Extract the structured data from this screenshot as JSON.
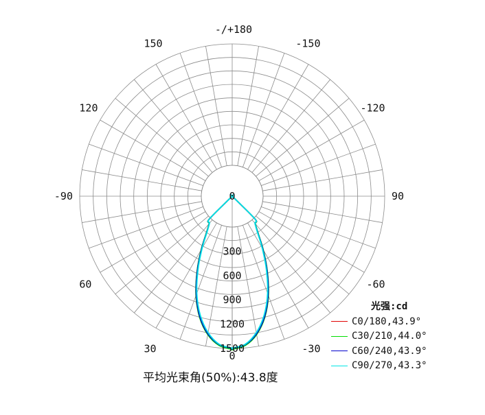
{
  "chart_data": {
    "type": "polar",
    "angle_labels": [
      {
        "angle": 180,
        "text": "-/+180"
      },
      {
        "angle": 150,
        "text": "150"
      },
      {
        "angle": 120,
        "text": "120"
      },
      {
        "angle": 90,
        "text": "90"
      },
      {
        "angle": 60,
        "text": "60"
      },
      {
        "angle": 30,
        "text": "30"
      },
      {
        "angle": 0,
        "text": "0"
      },
      {
        "angle": -30,
        "text": "-30"
      },
      {
        "angle": -60,
        "text": "-60"
      },
      {
        "angle": -90,
        "text": "-90"
      },
      {
        "angle": -120,
        "text": "-120"
      },
      {
        "angle": -150,
        "text": "-150"
      }
    ],
    "radial_ticks": [
      0,
      300,
      600,
      900,
      1200,
      1500
    ],
    "r_max": 1500,
    "grid": true,
    "legend_title": "光强:cd",
    "legend_position": "bottom-right",
    "series": [
      {
        "name": "C0/180,43.9°",
        "color": "#e00000",
        "points": [
          [
            0,
            1505
          ],
          [
            5,
            1465
          ],
          [
            10,
            1350
          ],
          [
            15,
            1165
          ],
          [
            20,
            920
          ],
          [
            25,
            640
          ],
          [
            30,
            380
          ],
          [
            35,
            170
          ],
          [
            40,
            60
          ],
          [
            45,
            15
          ],
          [
            50,
            0
          ]
        ]
      },
      {
        "name": "C30/210,44.0°",
        "color": "#00dd00",
        "points": [
          [
            0,
            1510
          ],
          [
            5,
            1470
          ],
          [
            10,
            1355
          ],
          [
            15,
            1170
          ],
          [
            20,
            925
          ],
          [
            25,
            645
          ],
          [
            30,
            385
          ],
          [
            35,
            175
          ],
          [
            40,
            62
          ],
          [
            45,
            15
          ],
          [
            50,
            0
          ]
        ]
      },
      {
        "name": "C60/240,43.9°",
        "color": "#0000cc",
        "points": [
          [
            0,
            1500
          ],
          [
            5,
            1460
          ],
          [
            10,
            1345
          ],
          [
            15,
            1160
          ],
          [
            20,
            915
          ],
          [
            25,
            635
          ],
          [
            30,
            375
          ],
          [
            35,
            168
          ],
          [
            40,
            58
          ],
          [
            45,
            14
          ],
          [
            50,
            0
          ]
        ]
      },
      {
        "name": "C90/270,43.3°",
        "color": "#00e5e5",
        "points": [
          [
            0,
            1495
          ],
          [
            5,
            1455
          ],
          [
            10,
            1330
          ],
          [
            15,
            1140
          ],
          [
            20,
            895
          ],
          [
            25,
            615
          ],
          [
            30,
            360
          ],
          [
            35,
            160
          ],
          [
            40,
            55
          ],
          [
            45,
            13
          ],
          [
            50,
            0
          ]
        ]
      }
    ],
    "footer": "平均光束角(50%):43.8度"
  }
}
